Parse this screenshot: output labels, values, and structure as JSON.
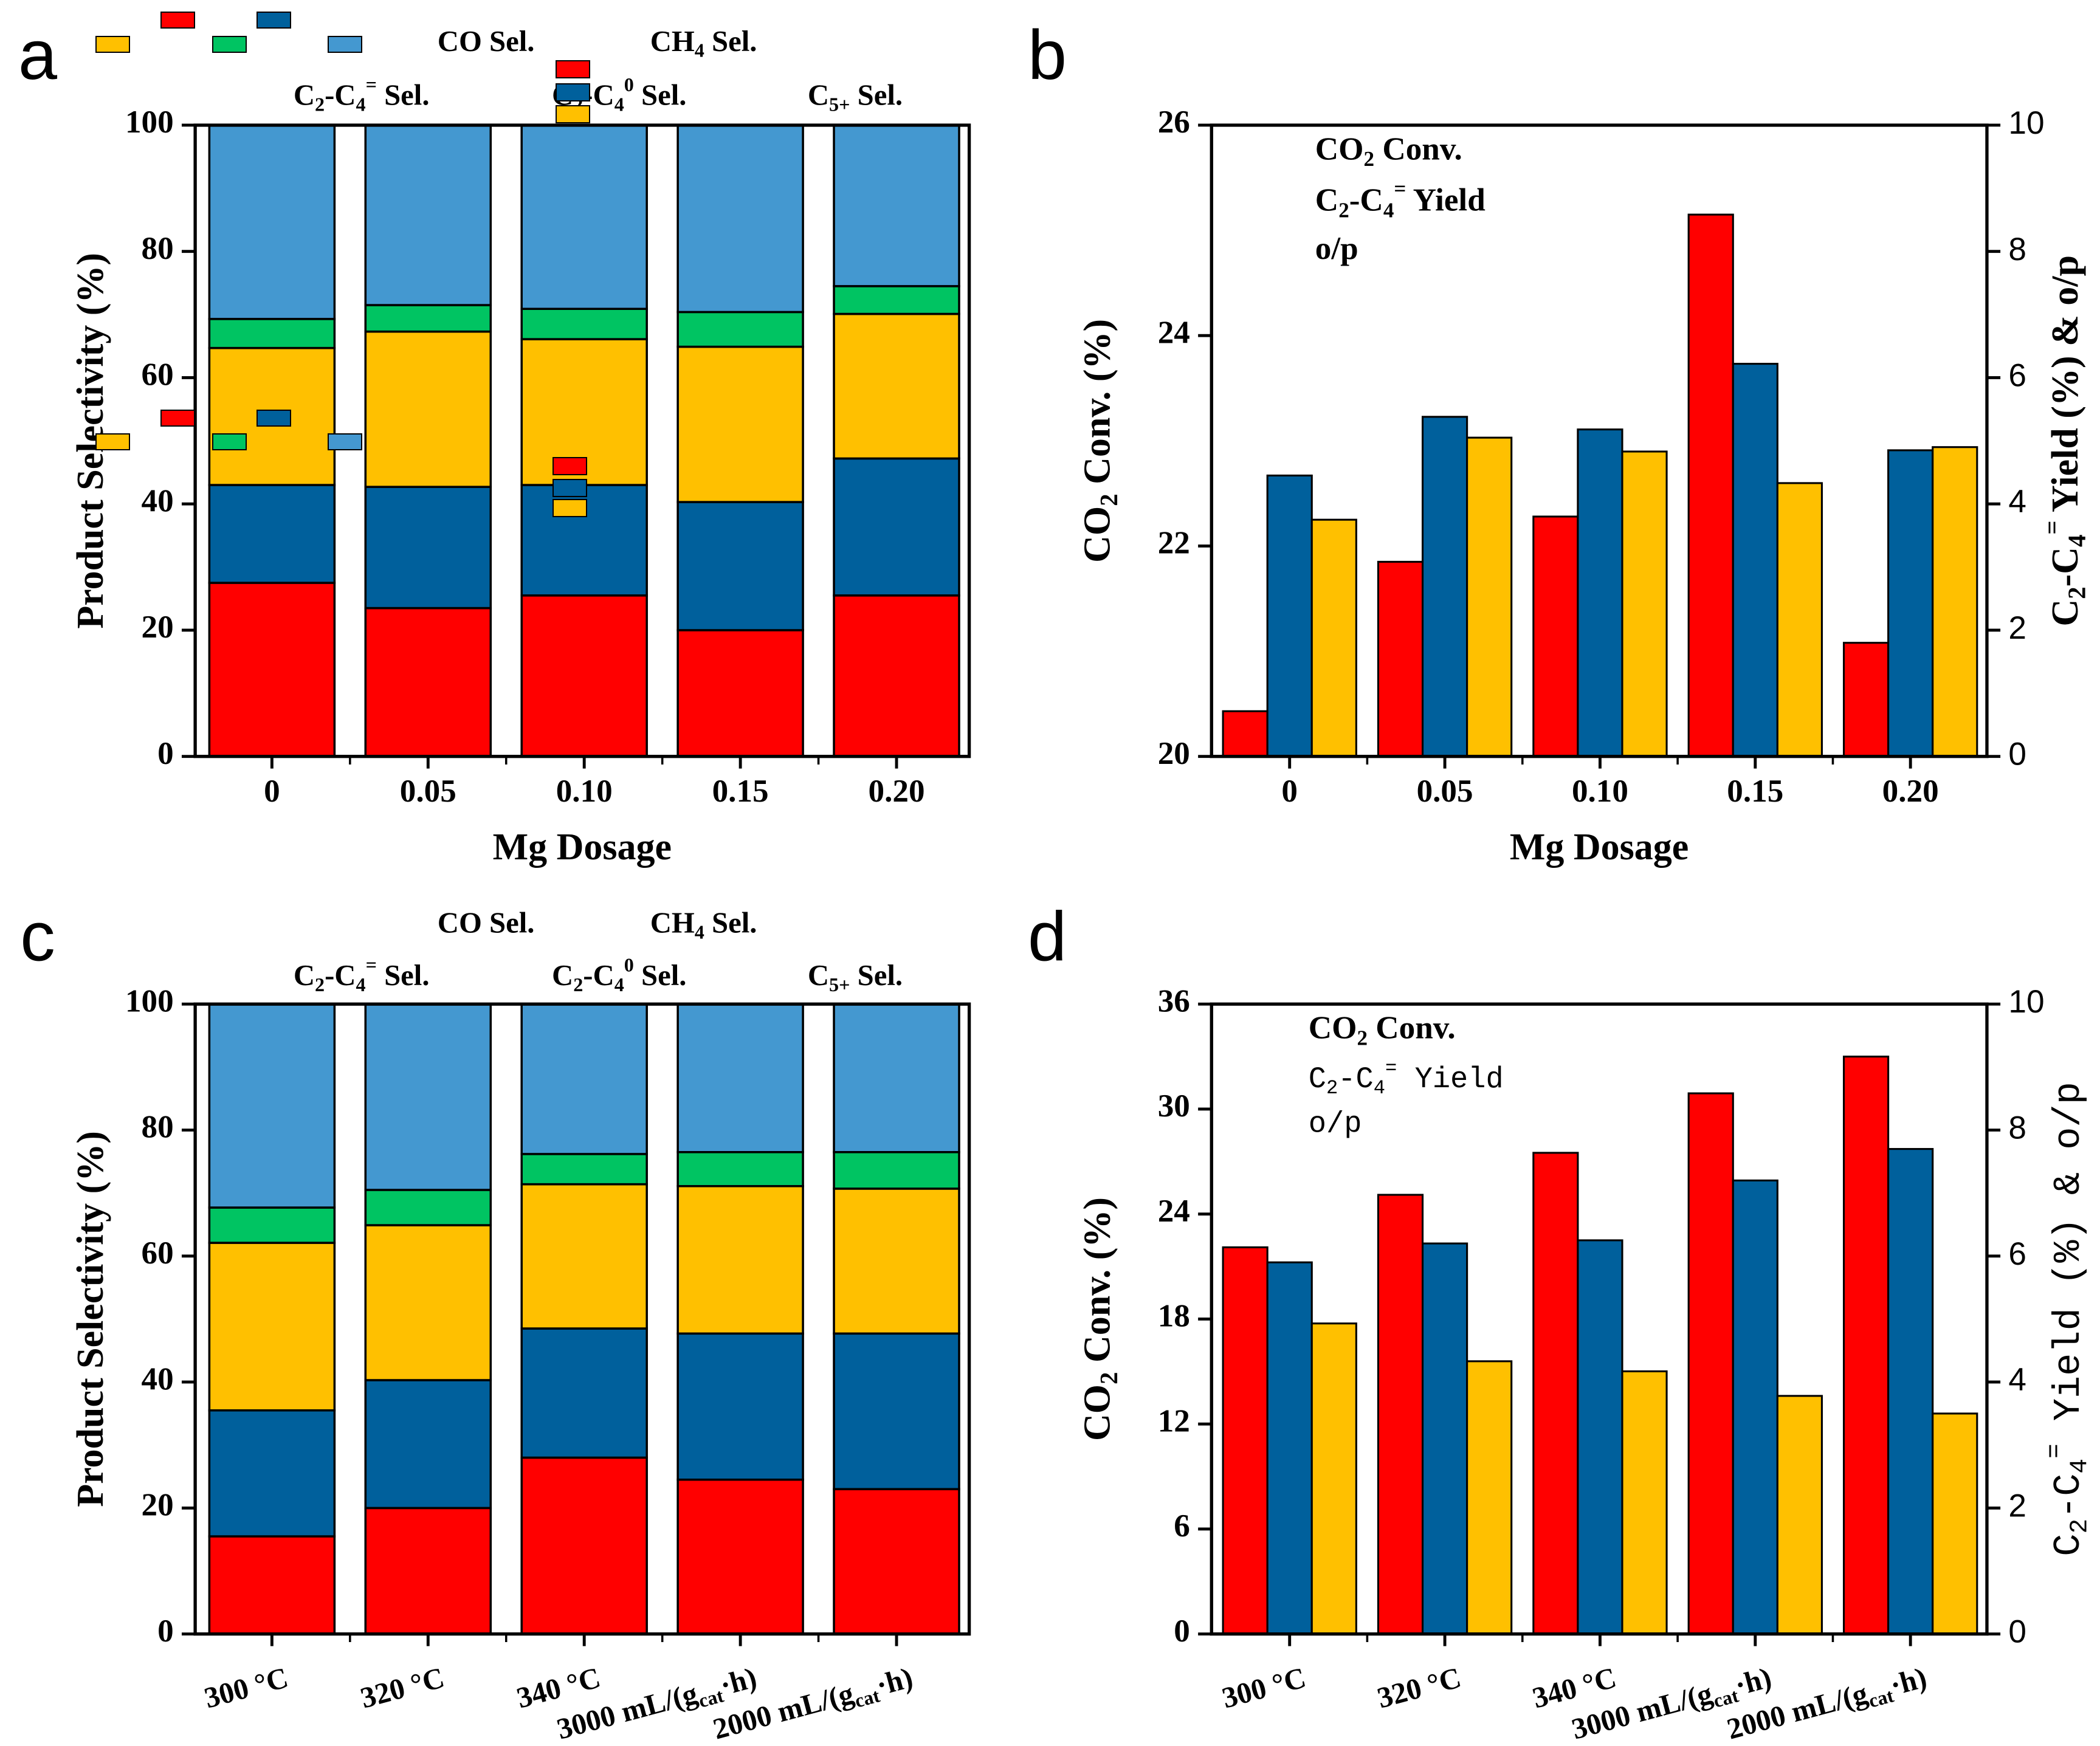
{
  "colors": {
    "co": "#ff0000",
    "ch4": "#00609c",
    "olefin": "#ffc000",
    "paraffin": "#00c462",
    "c5": "#4498d0"
  },
  "chart_data": [
    {
      "id": "a",
      "panel_label": "a",
      "type": "bar",
      "stacked": true,
      "categories": [
        "0",
        "0.05",
        "0.10",
        "0.15",
        "0.20"
      ],
      "series": [
        {
          "key": "co",
          "name": "CO Sel.",
          "values": [
            27.5,
            23.5,
            25.5,
            20.0,
            25.5
          ]
        },
        {
          "key": "ch4",
          "name": "CH4 Sel.",
          "values": [
            15.5,
            19.2,
            17.5,
            20.3,
            21.7
          ]
        },
        {
          "key": "olefin",
          "name": "C2-C4= Sel.",
          "values": [
            21.7,
            24.6,
            23.1,
            24.6,
            22.9
          ]
        },
        {
          "key": "paraffin",
          "name": "C2-C40 Sel.",
          "values": [
            4.6,
            4.2,
            4.8,
            5.5,
            4.4
          ]
        },
        {
          "key": "c5",
          "name": "C5+ Sel.",
          "values": [
            30.7,
            28.5,
            29.1,
            29.6,
            25.5
          ]
        }
      ],
      "xlabel": "Mg Dosage",
      "ylabel": "Product Selectivity (%)",
      "ylim": [
        0,
        100
      ],
      "yticks": [
        "0",
        "20",
        "40",
        "60",
        "80",
        "100"
      ]
    },
    {
      "id": "b",
      "panel_label": "b",
      "type": "bar",
      "categories": [
        "0",
        "0.05",
        "0.10",
        "0.15",
        "0.20"
      ],
      "series": [
        {
          "key": "co",
          "name": "CO2 Conv.",
          "axis": "left",
          "values": [
            20.43,
            21.85,
            22.28,
            25.15,
            21.08
          ]
        },
        {
          "key": "ch4",
          "name": "C2-C4= Yield",
          "axis": "right",
          "values": [
            4.45,
            5.38,
            5.18,
            6.22,
            4.85
          ]
        },
        {
          "key": "olefin",
          "name": "o/p",
          "axis": "right",
          "values": [
            3.75,
            5.05,
            4.83,
            4.33,
            4.9
          ]
        }
      ],
      "xlabel": "Mg Dosage",
      "ylabel": "CO2 Conv. (%)",
      "ylabel_right": "C2-C4= Yield (%) & o/p",
      "ylim": [
        20,
        26
      ],
      "ylim_right": [
        0,
        10
      ],
      "yticks": [
        "20",
        "22",
        "24",
        "26"
      ],
      "yticks_right": [
        "0",
        "2",
        "4",
        "6",
        "8",
        "10"
      ]
    },
    {
      "id": "c",
      "panel_label": "c",
      "type": "bar",
      "stacked": true,
      "categories": [
        "300 °C",
        "320 °C",
        "340 °C",
        "3000 mL/(gcat·h)",
        "2000 mL/(gcat·h)"
      ],
      "series": [
        {
          "key": "co",
          "name": "CO Sel.",
          "values": [
            15.5,
            20.0,
            28.0,
            24.5,
            23.0
          ]
        },
        {
          "key": "ch4",
          "name": "CH4 Sel.",
          "values": [
            20.0,
            20.3,
            20.5,
            23.2,
            24.7
          ]
        },
        {
          "key": "olefin",
          "name": "C2-C4= Sel.",
          "values": [
            26.6,
            24.6,
            22.9,
            23.4,
            23.0
          ]
        },
        {
          "key": "paraffin",
          "name": "C2-C40 Sel.",
          "values": [
            5.6,
            5.6,
            4.8,
            5.4,
            5.8
          ]
        },
        {
          "key": "c5",
          "name": "C5+ Sel.",
          "values": [
            32.3,
            29.5,
            23.8,
            23.5,
            23.5
          ]
        }
      ],
      "xlabel": "",
      "ylabel": "Product Selectivity (%)",
      "ylim": [
        0,
        100
      ],
      "yticks": [
        "0",
        "20",
        "40",
        "60",
        "80",
        "100"
      ]
    },
    {
      "id": "d",
      "panel_label": "d",
      "type": "bar",
      "categories": [
        "300 °C",
        "320 °C",
        "340 °C",
        "3000 mL/(gcat·h)",
        "2000 mL/(gcat·h)"
      ],
      "series": [
        {
          "key": "co",
          "name": "CO2 Conv.",
          "axis": "left",
          "values": [
            22.1,
            25.1,
            27.5,
            30.9,
            33.0
          ]
        },
        {
          "key": "ch4",
          "name": "C2-C4= Yield",
          "axis": "right",
          "values": [
            5.9,
            6.2,
            6.25,
            7.2,
            7.7
          ]
        },
        {
          "key": "olefin",
          "name": "o/p",
          "axis": "right",
          "values": [
            4.93,
            4.33,
            4.17,
            3.78,
            3.5
          ]
        }
      ],
      "xlabel": "",
      "ylabel": "CO2 Conv. (%)",
      "ylabel_right": "C2-C4= Yield (%) & o/p",
      "ylim": [
        0,
        36
      ],
      "ylim_right": [
        0,
        10
      ],
      "yticks": [
        "0",
        "6",
        "12",
        "18",
        "24",
        "30",
        "36"
      ],
      "yticks_right": [
        "0",
        "2",
        "4",
        "6",
        "8",
        "10"
      ]
    }
  ]
}
